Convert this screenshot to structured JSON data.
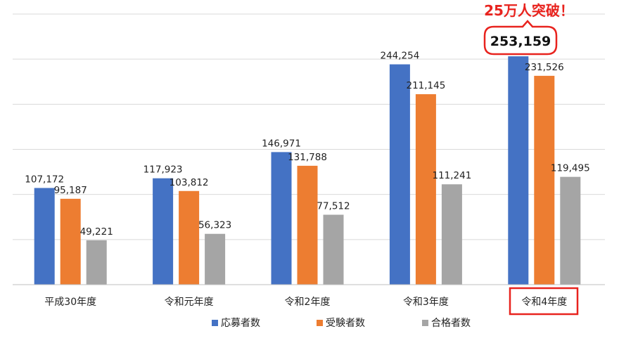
{
  "chart_data": {
    "type": "bar",
    "categories": [
      "平成30年度",
      "令和元年度",
      "令和2年度",
      "令和3年度",
      "令和4年度"
    ],
    "series": [
      {
        "name": "応募者数",
        "values": [
          107172,
          117923,
          146971,
          244254,
          253159
        ],
        "color": "#4472c4"
      },
      {
        "name": "受験者数",
        "values": [
          95187,
          103812,
          131788,
          211145,
          231526
        ],
        "color": "#ed7d31"
      },
      {
        "name": "合格者数",
        "values": [
          49221,
          56323,
          77512,
          111241,
          119495
        ],
        "color": "#a5a5a5"
      }
    ],
    "data_labels": [
      [
        "107,172",
        "117,923",
        "146,971",
        "244,254",
        "253,159"
      ],
      [
        "95,187",
        "103,812",
        "131,788",
        "211,145",
        "231,526"
      ],
      [
        "49,221",
        "56,323",
        "77,512",
        "111,241",
        "119,495"
      ]
    ],
    "ylim": [
      0,
      300000
    ],
    "grid": true,
    "legend_position": "bottom",
    "title": "",
    "xlabel": "",
    "ylabel": "",
    "annotation": {
      "callout": "25万人突破！",
      "callout_color": "#e8231e",
      "highlighted_category": "令和4年度",
      "highlighted_value": "253,159"
    }
  }
}
